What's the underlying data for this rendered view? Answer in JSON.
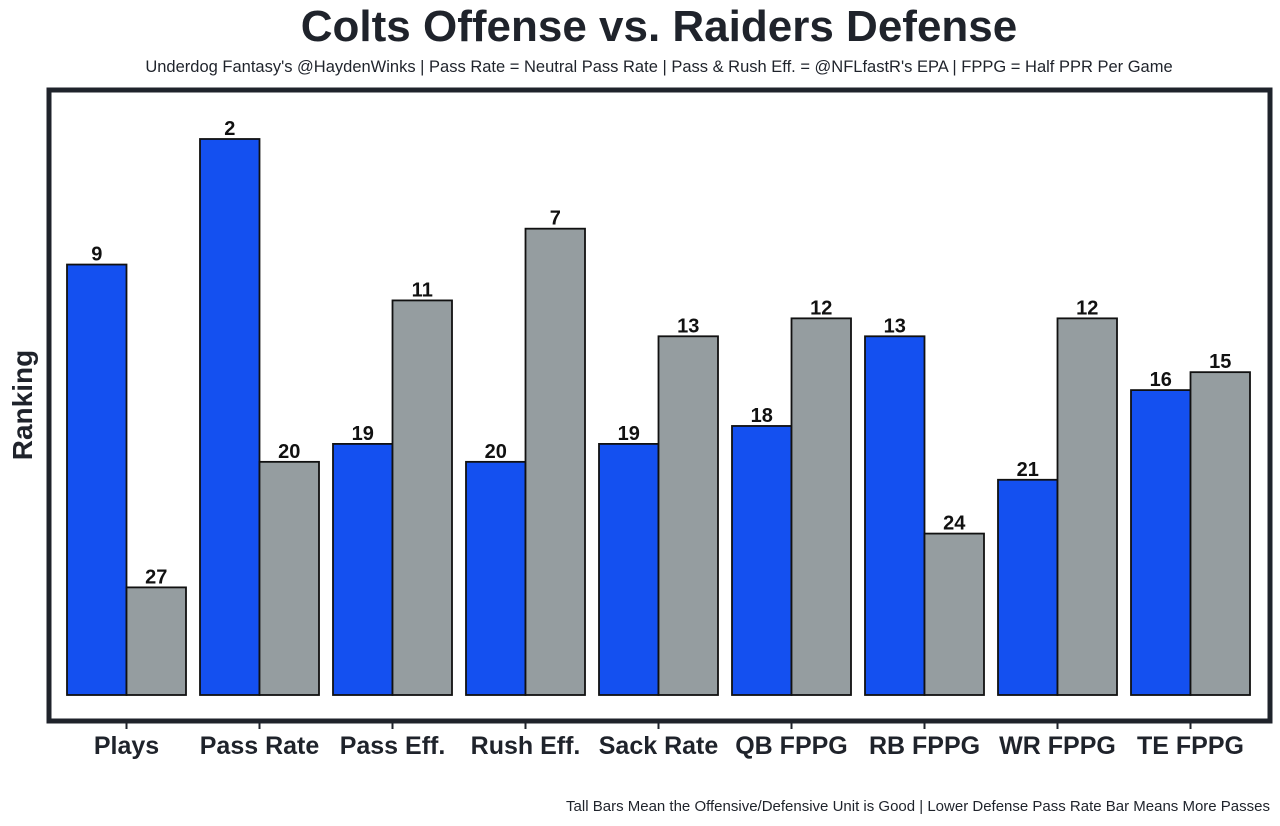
{
  "chart_data": {
    "type": "bar",
    "title": "Colts Offense vs. Raiders Defense",
    "subtitle": "Underdog Fantasy's @HaydenWinks | Pass Rate = Neutral Pass Rate | Pass & Rush Eff. = @NFLfastR's EPA | FPPG = Half PPR Per Game",
    "caption": "Tall Bars Mean the Offensive/Defensive Unit is Good | Lower Defense Pass Rate Bar Means More Passes",
    "xlabel": "",
    "ylabel": "Ranking",
    "categories": [
      "Plays",
      "Pass Rate",
      "Pass Eff.",
      "Rush Eff.",
      "Sack Rate",
      "QB FPPG",
      "RB FPPG",
      "WR FPPG",
      "TE FPPG"
    ],
    "series": [
      {
        "name": "Colts Offense",
        "color": "#1450f0",
        "values": [
          9,
          2,
          19,
          20,
          19,
          18,
          13,
          21,
          16
        ]
      },
      {
        "name": "Raiders Defense",
        "color": "#959da0",
        "values": [
          27,
          20,
          11,
          7,
          13,
          12,
          24,
          12,
          15
        ]
      }
    ],
    "scale": "rank (1 = tallest bar)",
    "ylim": [
      33,
      0
    ],
    "grid": false,
    "legend": "none"
  },
  "colors": {
    "offense": "#1450f0",
    "defense": "#959da0",
    "frame": "#1f232b",
    "text": "#1f232b"
  }
}
